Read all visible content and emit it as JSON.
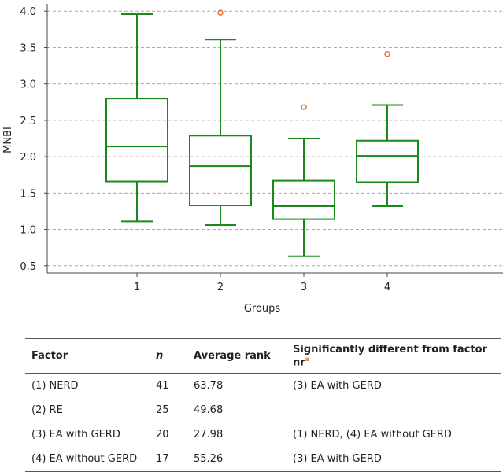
{
  "chart_data": {
    "type": "boxplot",
    "xlabel": "Groups",
    "ylabel": "MNBI",
    "ylim": [
      0.4,
      4.1
    ],
    "yticks": [
      "0.5",
      "1.0",
      "1.5",
      "2.0",
      "2.5",
      "3.0",
      "3.5",
      "4.0"
    ],
    "grid": true,
    "colors": {
      "box": "#1a8a1a",
      "outlier": "#e8762c",
      "grid": "#aaaaaa",
      "axis": "#444444"
    },
    "groups": [
      {
        "label": "1",
        "min": 1.11,
        "q1": 1.66,
        "median": 2.14,
        "q3": 2.8,
        "max": 3.96,
        "outliers": []
      },
      {
        "label": "2",
        "min": 1.06,
        "q1": 1.33,
        "median": 1.87,
        "q3": 2.29,
        "max": 3.61,
        "outliers": [
          3.98
        ]
      },
      {
        "label": "3",
        "min": 0.63,
        "q1": 1.14,
        "median": 1.32,
        "q3": 1.67,
        "max": 2.25,
        "outliers": [
          2.68
        ]
      },
      {
        "label": "4",
        "min": 1.32,
        "q1": 1.65,
        "median": 2.01,
        "q3": 2.22,
        "max": 2.71,
        "outliers": [
          3.41
        ]
      }
    ]
  },
  "table": {
    "headers": {
      "factor": "Factor",
      "n": "n",
      "rank": "Average rank",
      "diff": "Significantly different from factor nr",
      "note": "a"
    },
    "rows": [
      {
        "factor": "(1) NERD",
        "n": "41",
        "rank": "63.78",
        "diff": "(3) EA with GERD"
      },
      {
        "factor": "(2) RE",
        "n": "25",
        "rank": "49.68",
        "diff": ""
      },
      {
        "factor": "(3) EA with GERD",
        "n": "20",
        "rank": "27.98",
        "diff": "(1) NERD, (4) EA without GERD"
      },
      {
        "factor": "(4) EA without GERD",
        "n": "17",
        "rank": "55.26",
        "diff": "(3) EA with GERD"
      }
    ]
  }
}
